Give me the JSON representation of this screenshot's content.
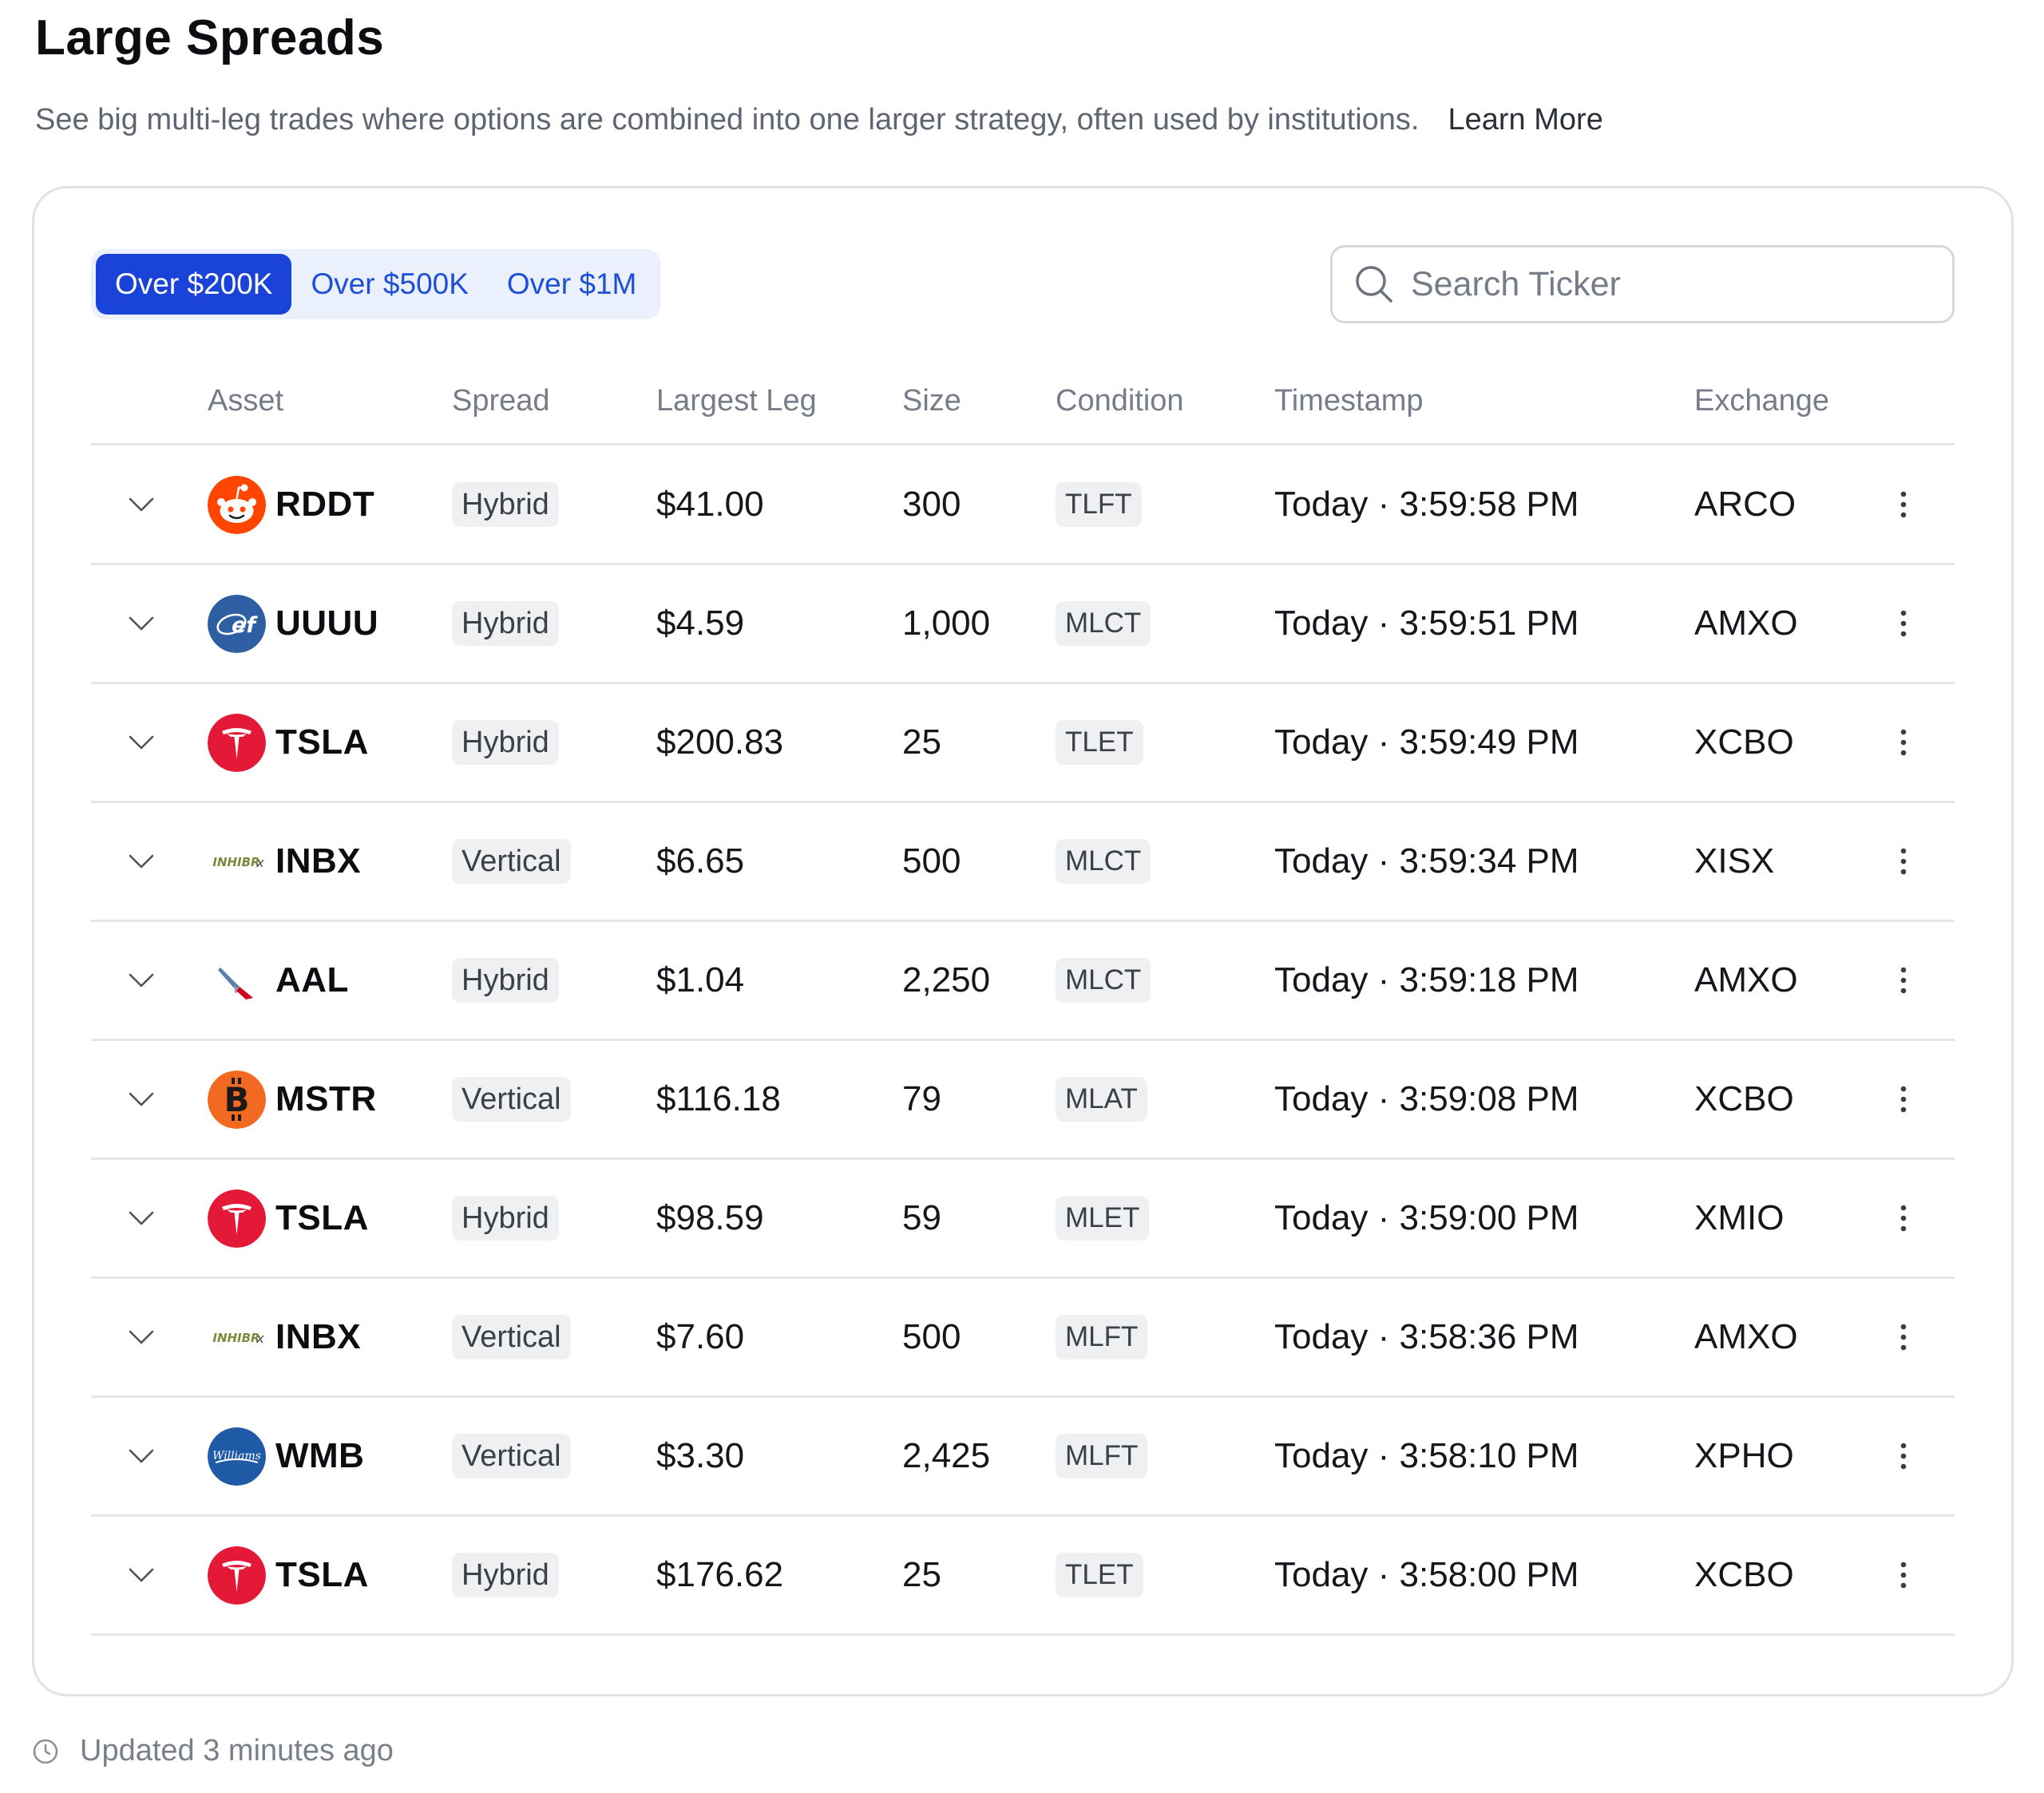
{
  "page": {
    "title": "Large Spreads",
    "description": "See big multi-leg trades where options are combined into one larger strategy, often used by institutions.",
    "learn_more": "Learn More"
  },
  "filters": [
    {
      "label": "Over $200K",
      "active": true
    },
    {
      "label": "Over $500K",
      "active": false
    },
    {
      "label": "Over $1M",
      "active": false
    }
  ],
  "search": {
    "placeholder": "Search Ticker",
    "value": ""
  },
  "columns": {
    "asset": "Asset",
    "spread": "Spread",
    "largest_leg": "Largest Leg",
    "size": "Size",
    "condition": "Condition",
    "timestamp": "Timestamp",
    "exchange": "Exchange"
  },
  "rows": [
    {
      "ticker": "RDDT",
      "logo": "reddit-logo-icon",
      "spread": "Hybrid",
      "largest_leg": "$41.00",
      "size": "300",
      "condition": "TLFT",
      "timestamp": "Today · 3:59:58 PM",
      "exchange": "ARCO"
    },
    {
      "ticker": "UUUU",
      "logo": "energy-fuels-logo-icon",
      "spread": "Hybrid",
      "largest_leg": "$4.59",
      "size": "1,000",
      "condition": "MLCT",
      "timestamp": "Today · 3:59:51 PM",
      "exchange": "AMXO"
    },
    {
      "ticker": "TSLA",
      "logo": "tesla-logo-icon",
      "spread": "Hybrid",
      "largest_leg": "$200.83",
      "size": "25",
      "condition": "TLET",
      "timestamp": "Today · 3:59:49 PM",
      "exchange": "XCBO"
    },
    {
      "ticker": "INBX",
      "logo": "inhibrx-logo-icon",
      "spread": "Vertical",
      "largest_leg": "$6.65",
      "size": "500",
      "condition": "MLCT",
      "timestamp": "Today · 3:59:34 PM",
      "exchange": "XISX"
    },
    {
      "ticker": "AAL",
      "logo": "american-airlines-logo-icon",
      "spread": "Hybrid",
      "largest_leg": "$1.04",
      "size": "2,250",
      "condition": "MLCT",
      "timestamp": "Today · 3:59:18 PM",
      "exchange": "AMXO"
    },
    {
      "ticker": "MSTR",
      "logo": "bitcoin-logo-icon",
      "spread": "Vertical",
      "largest_leg": "$116.18",
      "size": "79",
      "condition": "MLAT",
      "timestamp": "Today · 3:59:08 PM",
      "exchange": "XCBO"
    },
    {
      "ticker": "TSLA",
      "logo": "tesla-logo-icon",
      "spread": "Hybrid",
      "largest_leg": "$98.59",
      "size": "59",
      "condition": "MLET",
      "timestamp": "Today · 3:59:00 PM",
      "exchange": "XMIO"
    },
    {
      "ticker": "INBX",
      "logo": "inhibrx-logo-icon",
      "spread": "Vertical",
      "largest_leg": "$7.60",
      "size": "500",
      "condition": "MLFT",
      "timestamp": "Today · 3:58:36 PM",
      "exchange": "AMXO"
    },
    {
      "ticker": "WMB",
      "logo": "williams-logo-icon",
      "spread": "Vertical",
      "largest_leg": "$3.30",
      "size": "2,425",
      "condition": "MLFT",
      "timestamp": "Today · 3:58:10 PM",
      "exchange": "XPHO"
    },
    {
      "ticker": "TSLA",
      "logo": "tesla-logo-icon",
      "spread": "Hybrid",
      "largest_leg": "$176.62",
      "size": "25",
      "condition": "TLET",
      "timestamp": "Today · 3:58:00 PM",
      "exchange": "XCBO"
    }
  ],
  "footer": {
    "updated": "Updated 3 minutes ago"
  },
  "colors": {
    "accent": "#1a44d9",
    "filter_bg": "#eaf0fc",
    "pill_bg": "#eef0f2",
    "border": "#dfe2e6",
    "muted_text": "#767d88"
  }
}
